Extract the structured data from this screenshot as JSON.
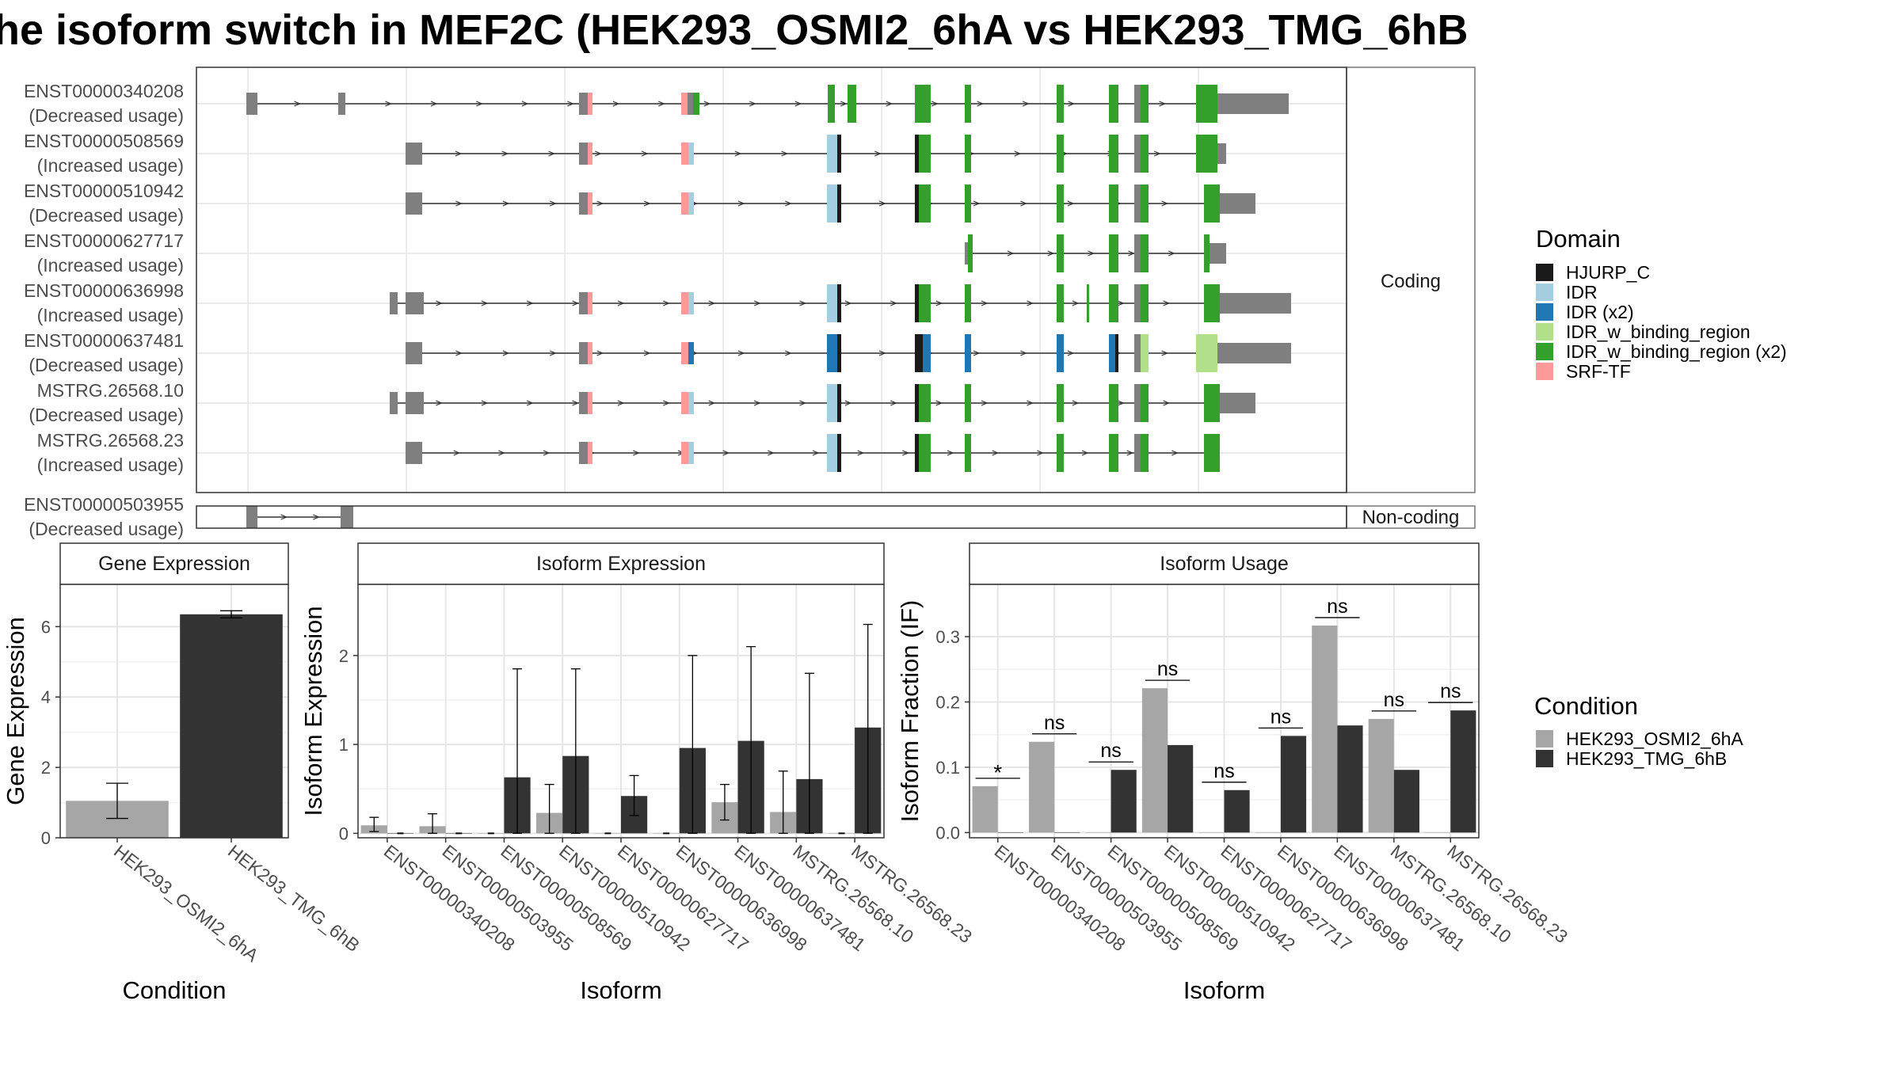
{
  "title": "he isoform switch in MEF2C (HEK293_OSMI2_6hA vs HEK293_TMG_6hB",
  "colors": {
    "exon": "#7f7f7f",
    "condition_a": "#a6a6a6",
    "condition_b": "#333333",
    "HJURP_C": "#1a1a1a",
    "IDR": "#a6cee3",
    "IDR (x2)": "#1f78b4",
    "IDR_w_binding_region": "#b2df8a",
    "IDR_w_binding_region (x2)": "#33a02c",
    "SRF-TF": "#fb9a99"
  },
  "chart_data": [
    {
      "type": "gene-structure",
      "panels": [
        "Coding",
        "Non-coding"
      ],
      "legend_title": "Domain",
      "legend": [
        "HJURP_C",
        "IDR",
        "IDR (x2)",
        "IDR_w_binding_region",
        "IDR_w_binding_region (x2)",
        "SRF-TF"
      ],
      "tracks": [
        {
          "id": "ENST00000340208",
          "usage": "(Decreased usage)",
          "panel": "Coding"
        },
        {
          "id": "ENST00000508569",
          "usage": "(Increased usage)",
          "panel": "Coding"
        },
        {
          "id": "ENST00000510942",
          "usage": "(Decreased usage)",
          "panel": "Coding"
        },
        {
          "id": "ENST00000627717",
          "usage": "(Increased usage)",
          "panel": "Coding"
        },
        {
          "id": "ENST00000636998",
          "usage": "(Increased usage)",
          "panel": "Coding"
        },
        {
          "id": "ENST00000637481",
          "usage": "(Decreased usage)",
          "panel": "Coding"
        },
        {
          "id": "MSTRG.26568.10",
          "usage": "(Decreased usage)",
          "panel": "Coding"
        },
        {
          "id": "MSTRG.26568.23",
          "usage": "(Increased usage)",
          "panel": "Coding"
        },
        {
          "id": "ENST00000503955",
          "usage": "(Decreased usage)",
          "panel": "Non-coding"
        }
      ]
    },
    {
      "type": "bar",
      "title": "Gene Expression",
      "xlabel": "Condition",
      "ylabel": "Gene Expression",
      "categories": [
        "HEK293_OSMI2_6hA",
        "HEK293_TMG_6hB"
      ],
      "values": [
        1.05,
        6.35
      ],
      "error_low": [
        0.55,
        6.25
      ],
      "error_high": [
        1.55,
        6.45
      ],
      "ylim": [
        0,
        7.2
      ],
      "yticks": [
        0,
        2,
        4,
        6
      ]
    },
    {
      "type": "bar",
      "title": "Isoform Expression",
      "xlabel": "Isoform",
      "ylabel": "Isoform Expression",
      "categories": [
        "ENST00000340208",
        "ENST00000503955",
        "ENST00000508569",
        "ENST00000510942",
        "ENST00000627717",
        "ENST00000636998",
        "ENST00000637481",
        "MSTRG.26568.10",
        "MSTRG.26568.23"
      ],
      "series": [
        {
          "name": "HEK293_OSMI2_6hA",
          "values": [
            0.09,
            0.08,
            0,
            0.23,
            0,
            0,
            0.35,
            0.24,
            0
          ],
          "error_low": [
            0.02,
            0.0,
            0,
            0.0,
            0,
            0,
            0.15,
            0.0,
            0
          ],
          "error_high": [
            0.18,
            0.22,
            0,
            0.55,
            0,
            0,
            0.55,
            0.7,
            0
          ]
        },
        {
          "name": "HEK293_TMG_6hB",
          "values": [
            0,
            0,
            0.63,
            0.87,
            0.42,
            0.96,
            1.04,
            0.61,
            1.19
          ],
          "error_low": [
            0,
            0,
            0,
            0,
            0.2,
            0,
            0,
            0,
            0
          ],
          "error_high": [
            0,
            0,
            1.85,
            1.85,
            0.65,
            2.0,
            2.1,
            1.8,
            2.35
          ]
        }
      ],
      "ylim": [
        -0.05,
        2.8
      ],
      "yticks": [
        0,
        1,
        2
      ]
    },
    {
      "type": "bar",
      "title": "Isoform Usage",
      "xlabel": "Isoform",
      "ylabel": "Isoform Fraction (IF)",
      "categories": [
        "ENST00000340208",
        "ENST00000503955",
        "ENST00000508569",
        "ENST00000510942",
        "ENST00000627717",
        "ENST00000636998",
        "ENST00000637481",
        "MSTRG.26568.10",
        "MSTRG.26568.23"
      ],
      "series": [
        {
          "name": "HEK293_OSMI2_6hA",
          "values": [
            0.071,
            0.139,
            0,
            0.221,
            0,
            0,
            0.317,
            0.174,
            0
          ]
        },
        {
          "name": "HEK293_TMG_6hB",
          "values": [
            0,
            0,
            0.096,
            0.134,
            0.065,
            0.148,
            0.164,
            0.096,
            0.187
          ]
        }
      ],
      "significance": [
        "*",
        "ns",
        "ns",
        "ns",
        "ns",
        "ns",
        "ns",
        "ns",
        "ns"
      ],
      "ylim": [
        -0.008,
        0.38
      ],
      "yticks": [
        0.0,
        0.1,
        0.2,
        0.3
      ],
      "ytick_labels": [
        "0.0",
        "0.1",
        "0.2",
        "0.3"
      ]
    }
  ],
  "condition_legend": {
    "title": "Condition",
    "entries": [
      "HEK293_OSMI2_6hA",
      "HEK293_TMG_6hB"
    ]
  }
}
